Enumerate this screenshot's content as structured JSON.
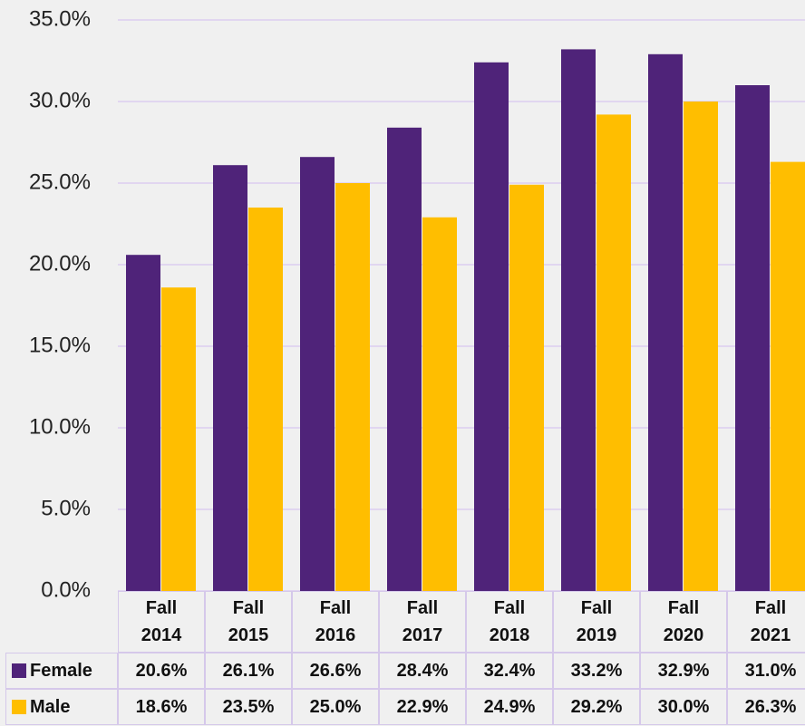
{
  "chart_data": {
    "type": "bar",
    "categories": [
      "Fall 2014",
      "Fall 2015",
      "Fall 2016",
      "Fall 2017",
      "Fall 2018",
      "Fall 2019",
      "Fall 2020",
      "Fall 2021"
    ],
    "series": [
      {
        "name": "Female",
        "color": "#4f2379",
        "values": [
          20.6,
          26.1,
          26.6,
          28.4,
          32.4,
          33.2,
          32.9,
          31.0
        ],
        "value_labels": [
          "20.6%",
          "26.1%",
          "26.6%",
          "28.4%",
          "32.4%",
          "33.2%",
          "32.9%",
          "31.0%"
        ]
      },
      {
        "name": "Male",
        "color": "#ffbe00",
        "values": [
          18.6,
          23.5,
          25.0,
          22.9,
          24.9,
          29.2,
          30.0,
          26.3
        ],
        "value_labels": [
          "18.6%",
          "23.5%",
          "25.0%",
          "22.9%",
          "24.9%",
          "29.2%",
          "30.0%",
          "26.3%"
        ]
      }
    ],
    "ylim": [
      0,
      35
    ],
    "yticks": [
      {
        "value": 0,
        "label": "0.0%"
      },
      {
        "value": 5,
        "label": "5.0%"
      },
      {
        "value": 10,
        "label": "10.0%"
      },
      {
        "value": 15,
        "label": "15.0%"
      },
      {
        "value": 20,
        "label": "20.0%"
      },
      {
        "value": 25,
        "label": "25.0%"
      },
      {
        "value": 30,
        "label": "30.0%"
      },
      {
        "value": 35,
        "label": "35.0%"
      }
    ],
    "grid": true
  }
}
